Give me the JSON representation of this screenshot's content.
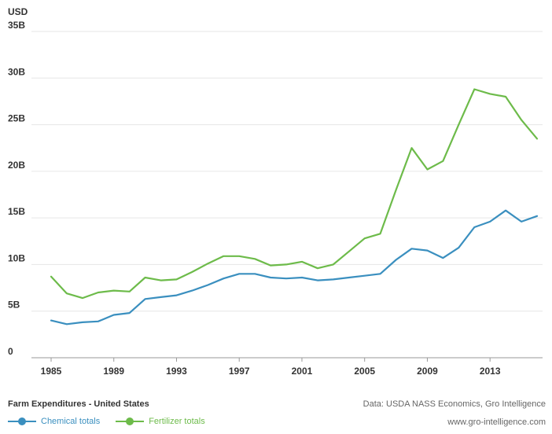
{
  "chart_data": {
    "type": "line",
    "unit_label": "USD",
    "x": [
      1985,
      1986,
      1987,
      1988,
      1989,
      1990,
      1991,
      1992,
      1993,
      1994,
      1995,
      1996,
      1997,
      1998,
      1999,
      2000,
      2001,
      2002,
      2003,
      2004,
      2005,
      2006,
      2007,
      2008,
      2009,
      2010,
      2011,
      2012,
      2013,
      2014,
      2015,
      2016
    ],
    "x_ticks": [
      "1985",
      "1989",
      "1993",
      "1997",
      "2001",
      "2005",
      "2009",
      "2013"
    ],
    "y_ticks": [
      "0",
      "5B",
      "10B",
      "15B",
      "20B",
      "25B",
      "30B",
      "35B"
    ],
    "xlim": [
      1985,
      2016
    ],
    "ylim": [
      0,
      35
    ],
    "grid": true,
    "legend_position": "bottom-left",
    "series": [
      {
        "name": "Chemical totals",
        "color": "#3a8fbf",
        "values": [
          4.0,
          3.6,
          3.8,
          3.9,
          4.6,
          4.8,
          6.3,
          6.5,
          6.7,
          7.2,
          7.8,
          8.5,
          9.0,
          9.0,
          8.6,
          8.5,
          8.6,
          8.3,
          8.4,
          8.6,
          8.8,
          9.0,
          10.5,
          11.7,
          11.5,
          10.7,
          11.8,
          14.0,
          14.6,
          15.8,
          14.6,
          15.2
        ]
      },
      {
        "name": "Fertilizer totals",
        "color": "#6dbb4a",
        "values": [
          8.7,
          6.9,
          6.4,
          7.0,
          7.2,
          7.1,
          8.6,
          8.3,
          8.4,
          9.2,
          10.1,
          10.9,
          10.9,
          10.6,
          9.9,
          10.0,
          10.3,
          9.6,
          10.0,
          11.4,
          12.8,
          13.3,
          18.0,
          22.5,
          20.2,
          21.1,
          25.0,
          28.8,
          28.3,
          28.0,
          25.5,
          23.5
        ]
      }
    ]
  },
  "footer": {
    "title": "Farm Expenditures - United States",
    "source": "Data: USDA NASS Economics, Gro Intelligence",
    "site": "www.gro-intelligence.com"
  }
}
